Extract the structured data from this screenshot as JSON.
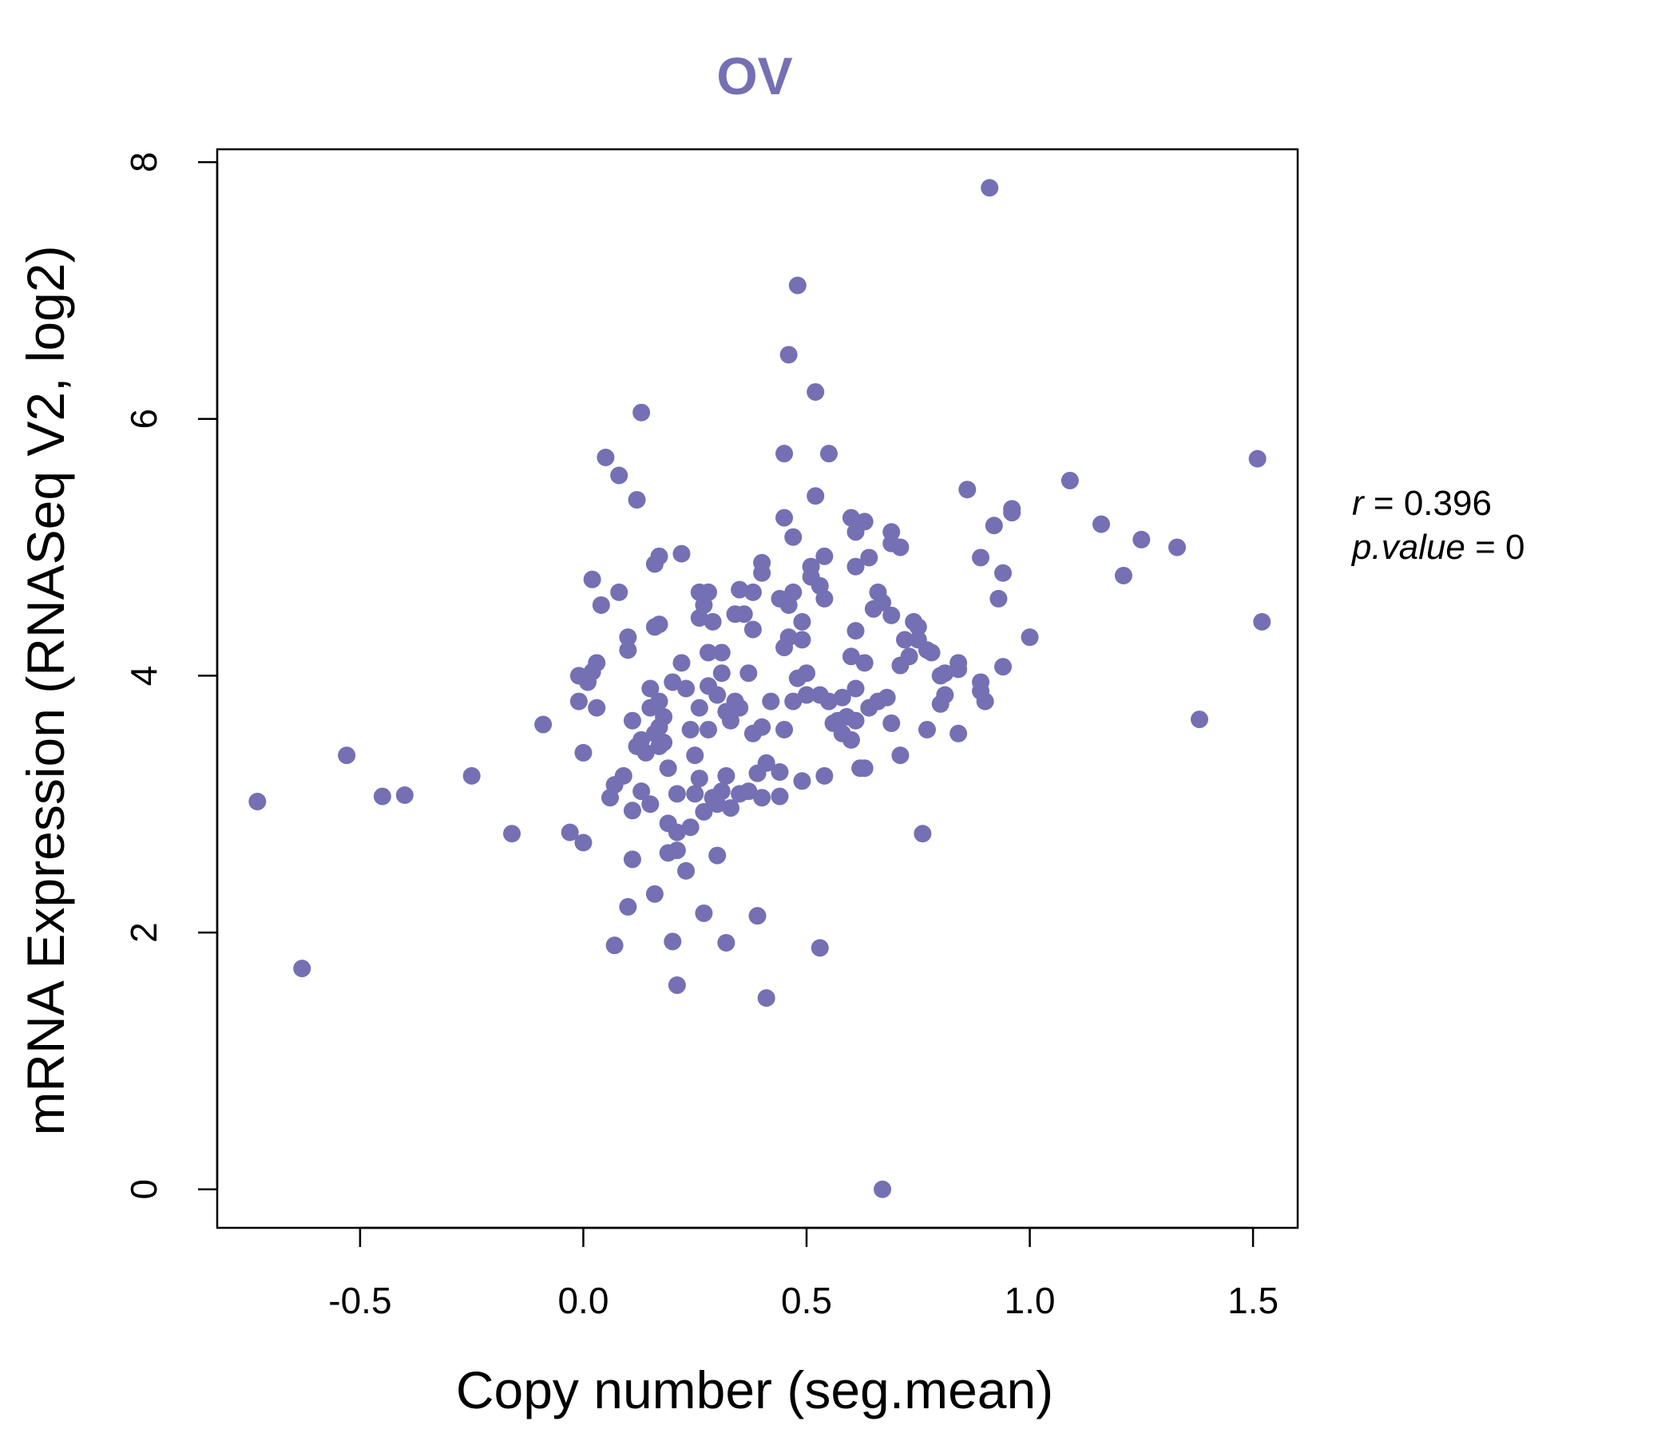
{
  "colors": {
    "point": "#7470b3",
    "title": "#7470b3",
    "axis": "#000000"
  },
  "chart_data": {
    "type": "scatter",
    "title": "OV",
    "xlabel": "Copy number (seg.mean)",
    "ylabel": "mRNA Expression (RNASeq V2, log2)",
    "xlim": [
      -0.82,
      1.6
    ],
    "ylim": [
      -0.3,
      8.1
    ],
    "xticks": [
      -0.5,
      0.0,
      0.5,
      1.0,
      1.5
    ],
    "xtick_labels": [
      "-0.5",
      "0.0",
      "0.5",
      "1.0",
      "1.5"
    ],
    "yticks": [
      0,
      2,
      4,
      6,
      8
    ],
    "ytick_labels": [
      "0",
      "2",
      "4",
      "6",
      "8"
    ],
    "stats": {
      "r_label": "r",
      "r_value": "0.396",
      "p_label": "p.value",
      "p_value": "0"
    },
    "points": [
      [
        -0.73,
        3.02
      ],
      [
        -0.63,
        1.72
      ],
      [
        -0.53,
        3.38
      ],
      [
        -0.45,
        3.06
      ],
      [
        -0.4,
        3.07
      ],
      [
        -0.25,
        3.22
      ],
      [
        -0.16,
        2.77
      ],
      [
        -0.09,
        3.62
      ],
      [
        -0.03,
        2.78
      ],
      [
        0.0,
        2.7
      ],
      [
        0.0,
        3.4
      ],
      [
        -0.01,
        3.8
      ],
      [
        -0.01,
        4.0
      ],
      [
        0.01,
        3.95
      ],
      [
        0.02,
        4.03
      ],
      [
        0.02,
        4.75
      ],
      [
        0.03,
        3.75
      ],
      [
        0.03,
        4.1
      ],
      [
        0.04,
        4.55
      ],
      [
        0.05,
        5.7
      ],
      [
        0.06,
        3.05
      ],
      [
        0.07,
        1.9
      ],
      [
        0.07,
        3.15
      ],
      [
        0.08,
        5.56
      ],
      [
        0.08,
        4.65
      ],
      [
        0.09,
        3.22
      ],
      [
        0.1,
        2.2
      ],
      [
        0.1,
        4.3
      ],
      [
        0.1,
        4.2
      ],
      [
        0.11,
        3.65
      ],
      [
        0.11,
        2.95
      ],
      [
        0.11,
        2.57
      ],
      [
        0.12,
        5.37
      ],
      [
        0.12,
        3.45
      ],
      [
        0.13,
        3.1
      ],
      [
        0.13,
        6.05
      ],
      [
        0.13,
        3.5
      ],
      [
        0.14,
        3.4
      ],
      [
        0.15,
        3.9
      ],
      [
        0.15,
        3.75
      ],
      [
        0.15,
        3.0
      ],
      [
        0.16,
        2.3
      ],
      [
        0.16,
        4.87
      ],
      [
        0.16,
        4.38
      ],
      [
        0.16,
        3.55
      ],
      [
        0.17,
        4.93
      ],
      [
        0.17,
        4.4
      ],
      [
        0.17,
        3.8
      ],
      [
        0.17,
        3.6
      ],
      [
        0.17,
        3.45
      ],
      [
        0.18,
        3.48
      ],
      [
        0.18,
        3.68
      ],
      [
        0.19,
        2.62
      ],
      [
        0.19,
        2.85
      ],
      [
        0.19,
        3.28
      ],
      [
        0.2,
        3.95
      ],
      [
        0.2,
        1.93
      ],
      [
        0.21,
        2.64
      ],
      [
        0.21,
        2.78
      ],
      [
        0.21,
        1.59
      ],
      [
        0.21,
        3.08
      ],
      [
        0.22,
        4.1
      ],
      [
        0.22,
        4.95
      ],
      [
        0.23,
        2.48
      ],
      [
        0.23,
        3.9
      ],
      [
        0.24,
        2.82
      ],
      [
        0.24,
        3.58
      ],
      [
        0.25,
        3.08
      ],
      [
        0.25,
        3.38
      ],
      [
        0.26,
        3.2
      ],
      [
        0.26,
        4.45
      ],
      [
        0.26,
        4.65
      ],
      [
        0.26,
        3.75
      ],
      [
        0.27,
        4.55
      ],
      [
        0.27,
        2.94
      ],
      [
        0.27,
        2.15
      ],
      [
        0.28,
        3.92
      ],
      [
        0.28,
        4.18
      ],
      [
        0.28,
        3.58
      ],
      [
        0.28,
        4.65
      ],
      [
        0.29,
        4.42
      ],
      [
        0.29,
        3.05
      ],
      [
        0.3,
        3.0
      ],
      [
        0.3,
        2.6
      ],
      [
        0.3,
        3.85
      ],
      [
        0.31,
        4.02
      ],
      [
        0.31,
        4.18
      ],
      [
        0.31,
        3.1
      ],
      [
        0.32,
        1.92
      ],
      [
        0.32,
        3.22
      ],
      [
        0.32,
        3.72
      ],
      [
        0.33,
        2.97
      ],
      [
        0.33,
        3.65
      ],
      [
        0.34,
        4.48
      ],
      [
        0.34,
        3.8
      ],
      [
        0.35,
        3.75
      ],
      [
        0.35,
        3.08
      ],
      [
        0.35,
        4.67
      ],
      [
        0.36,
        4.48
      ],
      [
        0.37,
        4.02
      ],
      [
        0.37,
        3.1
      ],
      [
        0.38,
        3.55
      ],
      [
        0.38,
        4.36
      ],
      [
        0.38,
        4.65
      ],
      [
        0.39,
        2.13
      ],
      [
        0.39,
        3.24
      ],
      [
        0.4,
        3.05
      ],
      [
        0.4,
        3.6
      ],
      [
        0.4,
        4.8
      ],
      [
        0.4,
        4.88
      ],
      [
        0.41,
        1.49
      ],
      [
        0.41,
        3.32
      ],
      [
        0.42,
        3.8
      ],
      [
        0.44,
        3.25
      ],
      [
        0.44,
        3.06
      ],
      [
        0.44,
        4.6
      ],
      [
        0.45,
        5.73
      ],
      [
        0.45,
        5.23
      ],
      [
        0.45,
        3.58
      ],
      [
        0.45,
        4.22
      ],
      [
        0.46,
        6.5
      ],
      [
        0.46,
        4.55
      ],
      [
        0.46,
        4.3
      ],
      [
        0.47,
        3.8
      ],
      [
        0.47,
        4.65
      ],
      [
        0.47,
        5.08
      ],
      [
        0.48,
        7.04
      ],
      [
        0.48,
        3.98
      ],
      [
        0.49,
        4.28
      ],
      [
        0.49,
        3.18
      ],
      [
        0.49,
        4.42
      ],
      [
        0.5,
        4.02
      ],
      [
        0.5,
        3.85
      ],
      [
        0.51,
        4.85
      ],
      [
        0.51,
        4.77
      ],
      [
        0.52,
        6.21
      ],
      [
        0.52,
        5.4
      ],
      [
        0.53,
        4.7
      ],
      [
        0.53,
        3.85
      ],
      [
        0.53,
        1.88
      ],
      [
        0.54,
        4.6
      ],
      [
        0.54,
        3.22
      ],
      [
        0.54,
        4.93
      ],
      [
        0.55,
        3.8
      ],
      [
        0.55,
        5.73
      ],
      [
        0.56,
        3.63
      ],
      [
        0.57,
        3.65
      ],
      [
        0.58,
        3.83
      ],
      [
        0.58,
        3.55
      ],
      [
        0.59,
        3.68
      ],
      [
        0.6,
        5.23
      ],
      [
        0.6,
        3.5
      ],
      [
        0.6,
        4.15
      ],
      [
        0.61,
        4.35
      ],
      [
        0.61,
        5.12
      ],
      [
        0.61,
        4.85
      ],
      [
        0.61,
        3.65
      ],
      [
        0.61,
        3.9
      ],
      [
        0.62,
        3.28
      ],
      [
        0.63,
        3.28
      ],
      [
        0.63,
        4.1
      ],
      [
        0.63,
        5.2
      ],
      [
        0.64,
        4.92
      ],
      [
        0.64,
        3.75
      ],
      [
        0.65,
        4.52
      ],
      [
        0.66,
        3.8
      ],
      [
        0.66,
        4.65
      ],
      [
        0.67,
        0.0
      ],
      [
        0.67,
        4.57
      ],
      [
        0.68,
        3.83
      ],
      [
        0.69,
        3.63
      ],
      [
        0.69,
        4.47
      ],
      [
        0.69,
        5.12
      ],
      [
        0.69,
        5.03
      ],
      [
        0.71,
        3.38
      ],
      [
        0.71,
        4.08
      ],
      [
        0.71,
        5.0
      ],
      [
        0.72,
        4.28
      ],
      [
        0.73,
        4.15
      ],
      [
        0.74,
        4.42
      ],
      [
        0.75,
        4.38
      ],
      [
        0.75,
        4.28
      ],
      [
        0.76,
        2.77
      ],
      [
        0.77,
        4.2
      ],
      [
        0.77,
        3.58
      ],
      [
        0.78,
        4.18
      ],
      [
        0.8,
        3.78
      ],
      [
        0.8,
        4.0
      ],
      [
        0.81,
        4.02
      ],
      [
        0.81,
        3.85
      ],
      [
        0.84,
        4.05
      ],
      [
        0.84,
        4.1
      ],
      [
        0.84,
        3.55
      ],
      [
        0.86,
        5.45
      ],
      [
        0.89,
        4.92
      ],
      [
        0.89,
        3.95
      ],
      [
        0.89,
        3.88
      ],
      [
        0.9,
        3.8
      ],
      [
        0.91,
        7.8
      ],
      [
        0.92,
        5.17
      ],
      [
        0.93,
        4.6
      ],
      [
        0.94,
        4.8
      ],
      [
        0.94,
        4.07
      ],
      [
        0.96,
        5.3
      ],
      [
        0.96,
        5.27
      ],
      [
        1.0,
        4.3
      ],
      [
        1.09,
        5.52
      ],
      [
        1.16,
        5.18
      ],
      [
        1.21,
        4.78
      ],
      [
        1.25,
        5.06
      ],
      [
        1.33,
        5.0
      ],
      [
        1.38,
        3.66
      ],
      [
        1.51,
        5.69
      ],
      [
        1.52,
        4.42
      ]
    ]
  }
}
